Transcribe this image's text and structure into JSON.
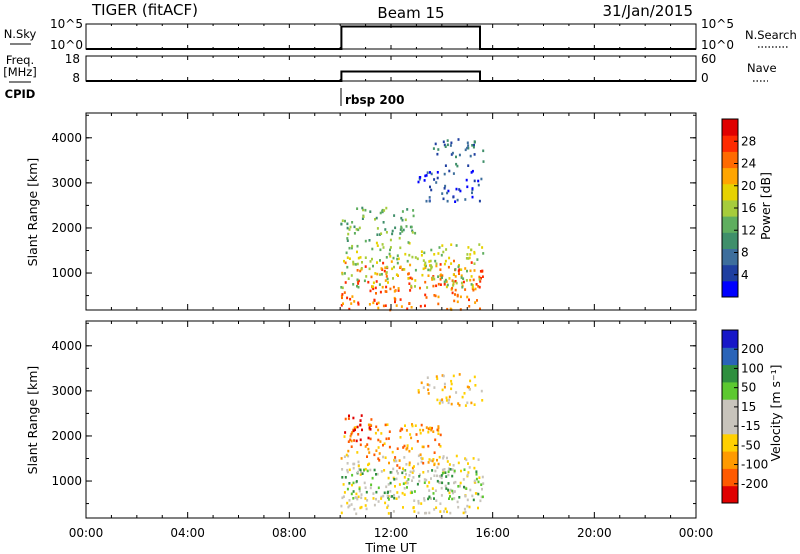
{
  "header": {
    "radar": "TIGER (fitACF)",
    "beam": "Beam 15",
    "date": "31/Jan/2015"
  },
  "left_labels": {
    "nsky": "N.Sky",
    "freq_line1": "Freq.",
    "freq_line2": "[MHz]",
    "cpid": "CPID"
  },
  "right_labels": {
    "nsearch": "N.Search",
    "nave": "Nave"
  },
  "cpid_label": "rbsp 200",
  "chart_data": [
    {
      "type": "line",
      "name": "noise-panel",
      "left_ylabel": "N.Sky",
      "right_ylabel": "N.Search",
      "left_ticks": [
        "10^5",
        "10^0"
      ],
      "right_ticks": [
        "10^5",
        "10^0"
      ],
      "series": [
        {
          "x_hours": [
            0,
            10.05,
            10.05,
            15.5,
            15.5,
            24
          ],
          "y_frac": [
            0,
            0,
            0.9,
            0.9,
            0,
            0
          ]
        }
      ]
    },
    {
      "type": "line",
      "name": "freq-nave-panel",
      "left_ylabel": "Freq. [MHz]",
      "right_ylabel": "Nave",
      "left_ticks": [
        18,
        8
      ],
      "right_ticks": [
        60,
        0
      ],
      "series": [
        {
          "x_hours": [
            0,
            10.05,
            10.05,
            15.5,
            15.5,
            24
          ],
          "y_frac": [
            0,
            0,
            0.38,
            0.38,
            0,
            0
          ]
        }
      ]
    },
    {
      "type": "heatmap",
      "name": "power-panel",
      "x_label": "",
      "y_label": "Slant Range [km]",
      "y_ticks": [
        1000,
        2000,
        3000,
        4000
      ],
      "y_range_km": [
        180,
        4550
      ],
      "x_range_hours": [
        0,
        24
      ],
      "colorbar_label": "Power [dB]",
      "colorbar_ticks": [
        "28",
        "24",
        "20",
        "16",
        "12",
        "8",
        "4"
      ],
      "colors": [
        "#0000ff",
        "#1f3fa0",
        "#3d6e9c",
        "#3f8f6a",
        "#5fae5f",
        "#a6cc3c",
        "#e6d200",
        "#ffa500",
        "#ff6a00",
        "#ff2a00",
        "#e00000"
      ],
      "data_hours": [
        10.0,
        15.6
      ],
      "features": [
        {
          "t0": 10.0,
          "t1": 15.6,
          "r0": 200,
          "r1": 1300,
          "level": 8
        },
        {
          "t0": 10.0,
          "t1": 15.6,
          "r0": 700,
          "r1": 1700,
          "level": 5
        },
        {
          "t0": 10.0,
          "t1": 13.0,
          "r0": 1700,
          "r1": 2500,
          "level": 4
        },
        {
          "t0": 13.0,
          "t1": 15.6,
          "r0": 2600,
          "r1": 3300,
          "level": 1
        },
        {
          "t0": 13.6,
          "t1": 15.6,
          "r0": 3400,
          "r1": 4000,
          "level": 2
        }
      ]
    },
    {
      "type": "heatmap",
      "name": "velocity-panel",
      "x_label": "Time UT",
      "y_label": "Slant Range [km]",
      "y_ticks": [
        1000,
        2000,
        3000,
        4000
      ],
      "y_range_km": [
        180,
        4550
      ],
      "x_range_hours": [
        0,
        24
      ],
      "x_ticks": [
        "00:00",
        "04:00",
        "08:00",
        "12:00",
        "16:00",
        "20:00",
        "00:00"
      ],
      "colorbar_label": "Velocity [m s⁻¹]",
      "colorbar_ticks": [
        "200",
        "100",
        "50",
        "15",
        "-15",
        "-50",
        "-100",
        "-200"
      ],
      "colors": [
        "#e00000",
        "#ff5a00",
        "#ff9a00",
        "#ffd000",
        "#c8c4bc",
        "#c8c4bc",
        "#5cc830",
        "#2f8f3f",
        "#2a64b8",
        "#1818c8"
      ],
      "data_hours": [
        10.0,
        15.6
      ],
      "features": [
        {
          "t0": 10.0,
          "t1": 15.6,
          "r0": 300,
          "r1": 1600,
          "level": 4
        },
        {
          "t0": 10.0,
          "t1": 15.6,
          "r0": 600,
          "r1": 1300,
          "level": 6
        },
        {
          "t0": 10.0,
          "t1": 14.0,
          "r0": 1300,
          "r1": 2300,
          "level": 2
        },
        {
          "t0": 10.0,
          "t1": 11.2,
          "r0": 1800,
          "r1": 2500,
          "level": 0
        },
        {
          "t0": 13.0,
          "t1": 15.6,
          "r0": 2700,
          "r1": 3400,
          "level": 3
        }
      ]
    }
  ]
}
